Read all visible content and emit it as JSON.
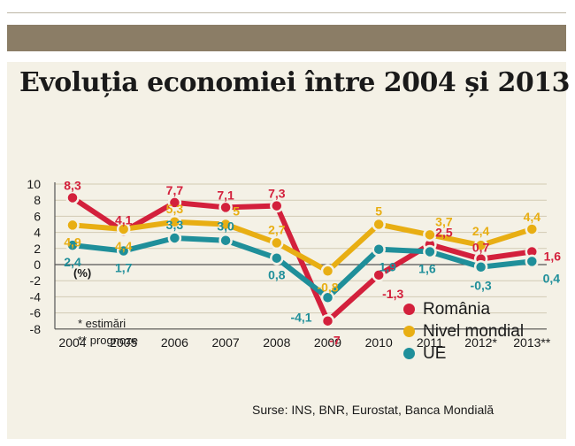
{
  "chart_data": {
    "type": "line",
    "title": "Evoluția economiei între 2004 și 2013",
    "ylabel": "(%)",
    "ylim": [
      -8,
      10
    ],
    "yticks": [
      10,
      8,
      6,
      4,
      2,
      0,
      -2,
      -4,
      -6,
      -8
    ],
    "categories": [
      "2004",
      "2005",
      "2006",
      "2007",
      "2008",
      "2009",
      "2010",
      "2011",
      "2012*",
      "2013**"
    ],
    "grid": true,
    "legend_position": "bottom-right",
    "series": [
      {
        "name": "România",
        "color": "#d3203c",
        "values": [
          8.3,
          4.1,
          7.7,
          7.1,
          7.3,
          -7,
          -1.3,
          2.5,
          0.7,
          1.6
        ],
        "labels": [
          "8,3",
          "4,1",
          "7,7",
          "7,1",
          "7,3",
          "-7",
          "-1,3",
          "2,5",
          "0,7",
          "1,6"
        ]
      },
      {
        "name": "Nivel mondial",
        "color": "#e8ae13",
        "values": [
          4.9,
          4.4,
          5.3,
          5,
          2.7,
          -0.8,
          5,
          3.7,
          2.4,
          4.4
        ],
        "labels": [
          "4,9",
          "4,4",
          "5,3",
          "5",
          "2,7",
          "-0,8",
          "5",
          "3,7",
          "2,4",
          "4,4"
        ]
      },
      {
        "name": "UE",
        "color": "#1f8f9a",
        "values": [
          2.4,
          1.7,
          3.3,
          3.0,
          0.8,
          -4.1,
          1.9,
          1.6,
          -0.3,
          0.4
        ],
        "labels": [
          "2,4",
          "1,7",
          "3,3",
          "3,0",
          "0,8",
          "-4,1",
          "1,9",
          "1,6",
          "-0,3",
          "0,4"
        ]
      }
    ],
    "notes": [
      "* estimări",
      "** prognoze"
    ],
    "source": "Surse: INS, BNR, Eurostat, Banca Mondială"
  }
}
